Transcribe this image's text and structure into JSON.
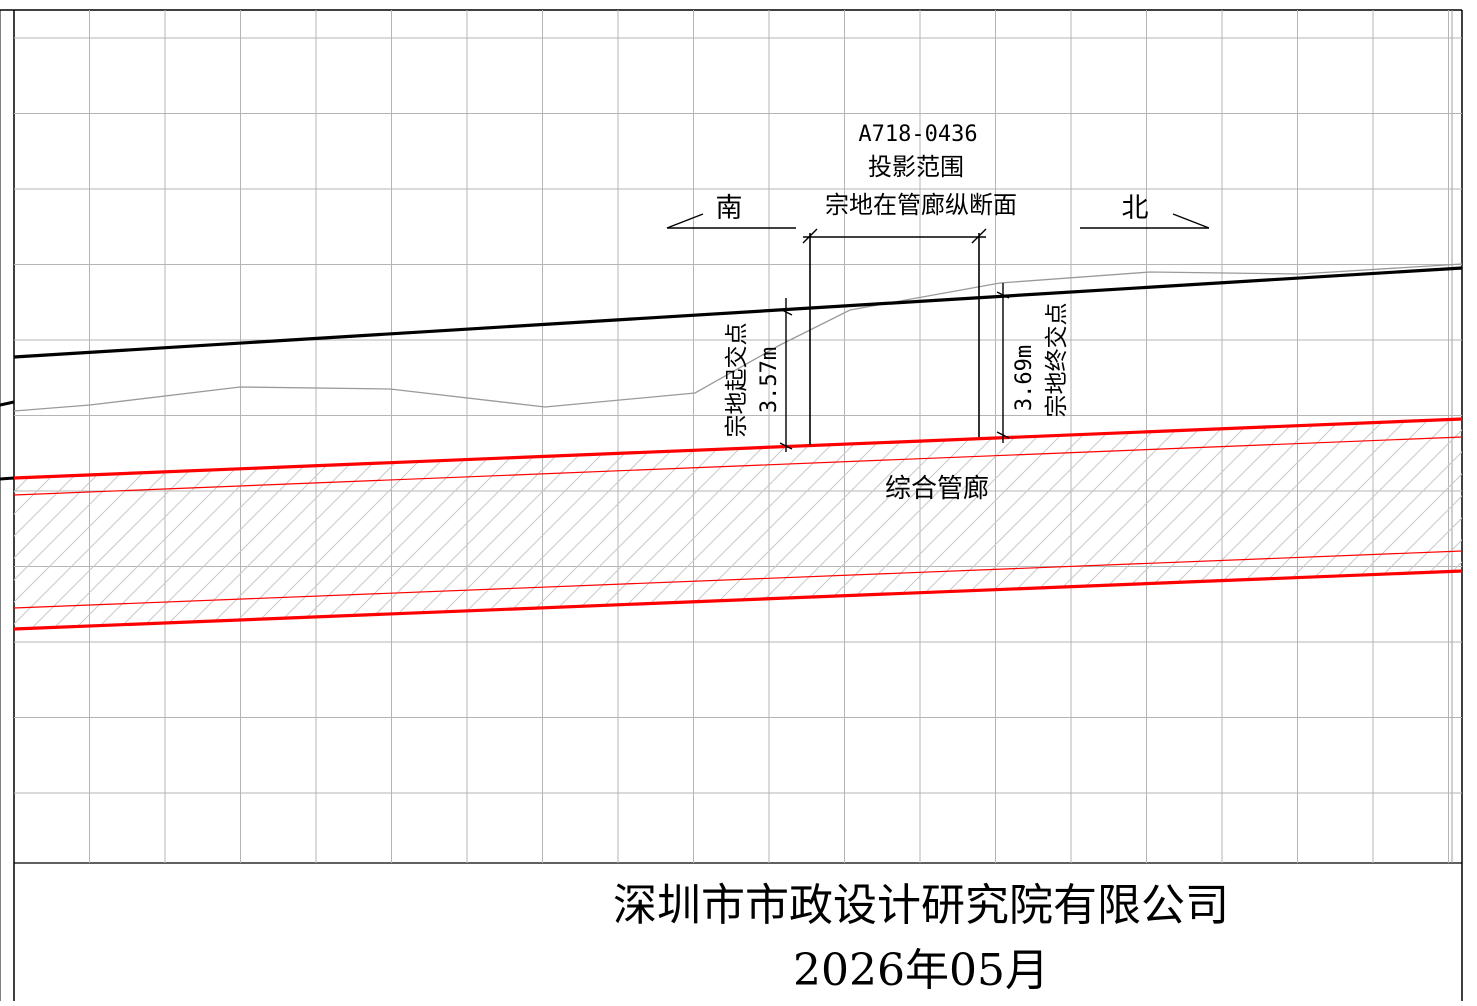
{
  "parcel": {
    "code": "A718-0436",
    "projection_label": "投影范围",
    "section_label": "宗地在管廊纵断面"
  },
  "directions": {
    "south": "南",
    "north": "北"
  },
  "start_point": {
    "label": "宗地起交点",
    "depth": "3.57m"
  },
  "end_point": {
    "label": "宗地终交点",
    "depth": "3.69m"
  },
  "tunnel": {
    "label": "综合管廊"
  },
  "footer": {
    "company": "深圳市市政设计研究院有限公司",
    "date": "2026年05月"
  },
  "colors": {
    "ground_line": "#000000",
    "tunnel_line": "#ff0000",
    "grid": "#b4b4b4",
    "terrain": "#9a9a9a",
    "hatch": "#c8c8c8"
  }
}
